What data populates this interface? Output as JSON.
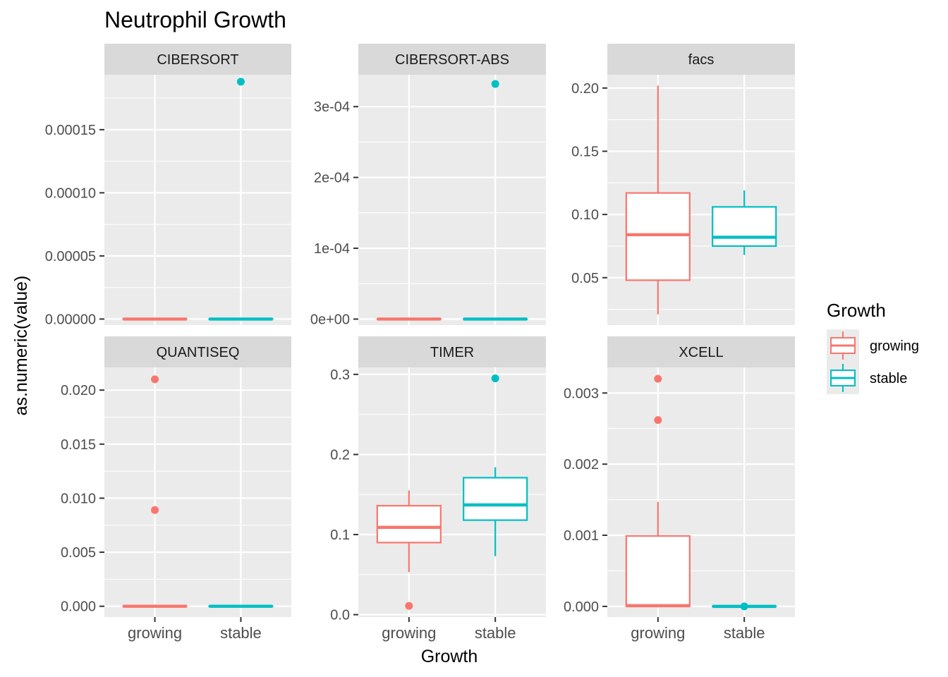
{
  "chart_data": {
    "type": "boxplot",
    "title": "Neutrophil Growth",
    "xlabel": "Growth",
    "ylabel": "as.numeric(value)",
    "categories": [
      "growing",
      "stable"
    ],
    "legend": {
      "title": "Growth",
      "placement": "right",
      "items": [
        {
          "label": "growing",
          "color": "#F8766D"
        },
        {
          "label": "stable",
          "color": "#00BFC4"
        }
      ]
    },
    "colors": {
      "growing": "#F8766D",
      "stable": "#00BFC4",
      "panel_bg": "#EBEBEB",
      "strip_bg": "#D9D9D9",
      "grid": "#FFFFFF"
    },
    "grid": true,
    "facets": [
      {
        "title": "CIBERSORT",
        "ylim": [
          -4.8e-06,
          0.0001935
        ],
        "yticks": [
          0,
          5e-05,
          0.0001,
          0.00015
        ],
        "yticklabels": [
          "0.00000",
          "0.00005",
          "0.00010",
          "0.00015"
        ],
        "boxes": [
          {
            "group": "growing",
            "q1": 0,
            "median": 0,
            "q3": 0,
            "lower_whisker": 0,
            "upper_whisker": 0,
            "outliers": []
          },
          {
            "group": "stable",
            "q1": 0,
            "median": 0,
            "q3": 0,
            "lower_whisker": 0,
            "upper_whisker": 0,
            "outliers": [
              0.000188
            ]
          }
        ]
      },
      {
        "title": "CIBERSORT-ABS",
        "ylim": [
          -8.5e-06,
          0.000345
        ],
        "yticks": [
          0,
          0.0001,
          0.0002,
          0.0003
        ],
        "yticklabels": [
          "0e+00",
          "1e-04",
          "2e-04",
          "3e-04"
        ],
        "boxes": [
          {
            "group": "growing",
            "q1": 0,
            "median": 0,
            "q3": 0,
            "lower_whisker": 0,
            "upper_whisker": 0,
            "outliers": []
          },
          {
            "group": "stable",
            "q1": 0,
            "median": 0,
            "q3": 0,
            "lower_whisker": 0,
            "upper_whisker": 0,
            "outliers": [
              0.000332
            ]
          }
        ]
      },
      {
        "title": "facs",
        "ylim": [
          0.0125,
          0.2105
        ],
        "yticks": [
          0.05,
          0.1,
          0.15,
          0.2
        ],
        "yticklabels": [
          "0.05",
          "0.10",
          "0.15",
          "0.20"
        ],
        "boxes": [
          {
            "group": "growing",
            "q1": 0.048,
            "median": 0.084,
            "q3": 0.117,
            "lower_whisker": 0.021,
            "upper_whisker": 0.202,
            "outliers": []
          },
          {
            "group": "stable",
            "q1": 0.075,
            "median": 0.082,
            "q3": 0.106,
            "lower_whisker": 0.068,
            "upper_whisker": 0.119,
            "outliers": []
          }
        ]
      },
      {
        "title": "QUANTISEQ",
        "ylim": [
          -0.001,
          0.0221
        ],
        "yticks": [
          0,
          0.005,
          0.01,
          0.015,
          0.02
        ],
        "yticklabels": [
          "0.000",
          "0.005",
          "0.010",
          "0.015",
          "0.020"
        ],
        "boxes": [
          {
            "group": "growing",
            "q1": 0,
            "median": 0,
            "q3": 0,
            "lower_whisker": 0,
            "upper_whisker": 0,
            "outliers": [
              0.021,
              0.0089
            ]
          },
          {
            "group": "stable",
            "q1": 0,
            "median": 0,
            "q3": 0,
            "lower_whisker": 0,
            "upper_whisker": 0,
            "outliers": []
          }
        ]
      },
      {
        "title": "TIMER",
        "ylim": [
          -0.003,
          0.3087
        ],
        "yticks": [
          0,
          0.1,
          0.2,
          0.3
        ],
        "yticklabels": [
          "0.0",
          "0.1",
          "0.2",
          "0.3"
        ],
        "boxes": [
          {
            "group": "growing",
            "q1": 0.09,
            "median": 0.109,
            "q3": 0.136,
            "lower_whisker": 0.053,
            "upper_whisker": 0.155,
            "outliers": [
              0.011
            ]
          },
          {
            "group": "stable",
            "q1": 0.118,
            "median": 0.137,
            "q3": 0.171,
            "lower_whisker": 0.073,
            "upper_whisker": 0.184,
            "outliers": [
              0.295
            ]
          }
        ]
      },
      {
        "title": "XCELL",
        "ylim": [
          -0.00015,
          0.00336
        ],
        "yticks": [
          0,
          0.001,
          0.002,
          0.003
        ],
        "yticklabels": [
          "0.000",
          "0.001",
          "0.002",
          "0.003"
        ],
        "boxes": [
          {
            "group": "growing",
            "q1": 0,
            "median": 1e-05,
            "q3": 0.00099,
            "lower_whisker": 0,
            "upper_whisker": 0.00147,
            "outliers": [
              0.0032,
              0.00262
            ]
          },
          {
            "group": "stable",
            "q1": 0,
            "median": 0,
            "q3": 0,
            "lower_whisker": 0,
            "upper_whisker": 0,
            "outliers": [
              0
            ]
          }
        ]
      }
    ]
  }
}
